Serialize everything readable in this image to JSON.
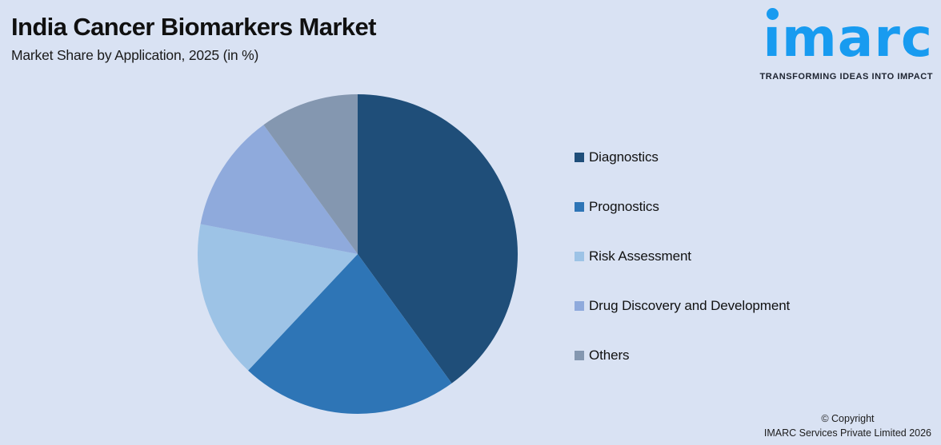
{
  "page": {
    "title": "India Cancer Biomarkers Market",
    "subtitle": "Market Share by Application, 2025 (in %)"
  },
  "logo": {
    "brand": "imarc",
    "tagline": "TRANSFORMING IDEAS INTO IMPACT",
    "brand_color": "#189BF0"
  },
  "chart_data": {
    "type": "pie",
    "title": "India Cancer Biomarkers Market",
    "subtitle": "Market Share by Application, 2025 (in %)",
    "unit": "%",
    "legend_position": "right",
    "start_angle_deg": 0,
    "direction": "clockwise",
    "labels_on_slices": false,
    "segments": [
      {
        "label": "Diagnostics",
        "value": 40,
        "color": "#1F4E79"
      },
      {
        "label": "Prognostics",
        "value": 22,
        "color": "#2E75B6"
      },
      {
        "label": "Risk Assessment",
        "value": 16,
        "color": "#9DC3E6"
      },
      {
        "label": "Drug Discovery and Development",
        "value": 12,
        "color": "#8FAADC"
      },
      {
        "label": "Others",
        "value": 10,
        "color": "#8497B0"
      }
    ]
  },
  "footer": {
    "copyright_line1": "© Copyright",
    "copyright_line2": "IMARC Services Private Limited 2026"
  },
  "theme": {
    "background": "#D9E2F3",
    "text": "#111111"
  }
}
